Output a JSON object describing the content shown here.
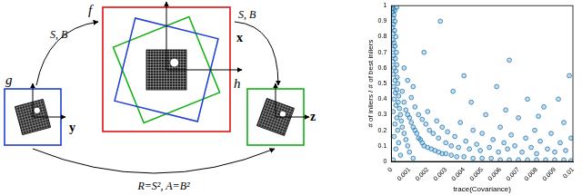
{
  "diagram": {
    "frames": [
      {
        "label": "g",
        "coord": "y"
      },
      {
        "label": "f",
        "coord": "x"
      },
      {
        "label": "h",
        "coord": "z"
      }
    ],
    "arrows": [
      {
        "from": "g",
        "to": "f",
        "label": "S, B"
      },
      {
        "from": "f",
        "to": "h",
        "label": "S, B"
      },
      {
        "from": "g",
        "to": "h",
        "label": "R=S², A=B²"
      }
    ]
  },
  "chart_data": {
    "type": "scatter",
    "x_label": "trace(Covariance)",
    "y_label": "# of inliers / # of best inliers",
    "color": "#1f77b4",
    "marker": "circle",
    "grid": false,
    "xlim": [
      0,
      0.01
    ],
    "xticks": [
      0,
      0.001,
      0.002,
      0.003,
      0.004,
      0.005,
      0.006,
      0.007,
      0.008,
      0.009,
      0.01
    ],
    "ylim": [
      0,
      1
    ],
    "yticks": [
      0,
      0.1,
      0.2,
      0.3,
      0.4,
      0.5,
      0.6,
      0.7,
      0.8,
      0.9,
      1
    ],
    "x": [
      5e-05,
      0.0001,
      8e-05,
      0.00015,
      0.0001,
      0.0002,
      0.00012,
      6e-05,
      0.00018,
      0.0001,
      0.00025,
      8e-05,
      0.00015,
      0.0002,
      0.0001,
      0.00028,
      0.00012,
      0.00022,
      8e-05,
      0.0003,
      0.00015,
      0.00025,
      0.0001,
      0.00032,
      0.0002,
      0.00035,
      0.00012,
      0.0003,
      0.00022,
      0.0004,
      0.00015,
      0.00038,
      0.00025,
      0.00045,
      0.0001,
      0.0005,
      0.0003,
      0.00055,
      0.0002,
      0.0006,
      0.00035,
      0.0007,
      0.00015,
      0.0008,
      0.0004,
      0.0009,
      0.00025,
      0.001,
      0.0005,
      0.0012,
      0.0001,
      0.0003,
      0.0002,
      0.0006,
      0.0007,
      0.0008,
      0.0009,
      0.001,
      0.0011,
      0.0012,
      0.0013,
      0.0014,
      0.0015,
      0.0016,
      0.0017,
      0.0018,
      0.002,
      0.0022,
      0.0024,
      0.0026,
      0.0028,
      0.003,
      0.0033,
      0.0036,
      0.004,
      0.0045,
      0.005,
      0.0055,
      0.006,
      0.0065,
      0.007,
      0.0075,
      0.008,
      0.0085,
      0.009,
      0.0095,
      0.0099,
      0.0007,
      0.0009,
      0.0011,
      0.0013,
      0.0012,
      0.0015,
      0.0017,
      0.0019,
      0.002,
      0.0021,
      0.0023,
      0.0025,
      0.0026,
      0.0028,
      0.003,
      0.0031,
      0.0033,
      0.0035,
      0.0037,
      0.0038,
      0.004,
      0.0041,
      0.0043,
      0.0045,
      0.0047,
      0.0049,
      0.005,
      0.0052,
      0.0054,
      0.0056,
      0.0058,
      0.0059,
      0.006,
      0.0062,
      0.0064,
      0.0065,
      0.0066,
      0.0068,
      0.007,
      0.0072,
      0.0074,
      0.0075,
      0.0077,
      0.0079,
      0.008,
      0.0082,
      0.0084,
      0.0086,
      0.0088,
      0.009,
      0.0092,
      0.0093,
      0.0095,
      0.0096,
      0.0098,
      0.0099,
      0.0027,
      0.0018,
      0.0034,
      0.0044,
      0.0063,
      0.0081
    ],
    "values": [
      1,
      0.98,
      0.96,
      0.94,
      0.92,
      0.9,
      0.88,
      0.86,
      0.84,
      0.82,
      0.8,
      0.78,
      0.76,
      0.74,
      0.72,
      0.7,
      0.68,
      0.66,
      0.64,
      0.62,
      0.6,
      0.58,
      0.56,
      0.54,
      0.52,
      0.5,
      0.48,
      0.46,
      0.44,
      0.42,
      0.4,
      0.38,
      0.36,
      0.34,
      0.32,
      0.3,
      0.28,
      0.26,
      0.24,
      0.22,
      0.2,
      0.18,
      0.16,
      0.14,
      0.12,
      0.1,
      0.08,
      0.06,
      0.04,
      0.02,
      0.01,
      0.99,
      0.97,
      0.45,
      0.38,
      0.33,
      0.3,
      0.28,
      0.25,
      0.22,
      0.2,
      0.18,
      0.15,
      0.14,
      0.12,
      0.1,
      0.09,
      0.08,
      0.07,
      0.06,
      0.05,
      0.05,
      0.04,
      0.03,
      0.03,
      0.02,
      0.02,
      0.02,
      0.01,
      0.01,
      0.01,
      0.01,
      0.01,
      0.01,
      0.01,
      0.01,
      0.005,
      0.6,
      0.52,
      0.41,
      0.35,
      0.48,
      0.3,
      0.27,
      0.24,
      0.32,
      0.2,
      0.18,
      0.26,
      0.15,
      0.22,
      0.12,
      0.19,
      0.1,
      0.16,
      0.09,
      0.25,
      0.55,
      0.13,
      0.08,
      0.2,
      0.11,
      0.07,
      0.18,
      0.3,
      0.09,
      0.14,
      0.48,
      0.06,
      0.22,
      0.12,
      0.08,
      0.65,
      0.17,
      0.1,
      0.28,
      0.06,
      0.15,
      0.4,
      0.09,
      0.2,
      0.05,
      0.13,
      0.35,
      0.08,
      0.18,
      0.06,
      0.4,
      0.12,
      0.25,
      0.07,
      0.55,
      0.15,
      0.9,
      0.7,
      0.45,
      0.38,
      0.33,
      0.29
    ]
  }
}
